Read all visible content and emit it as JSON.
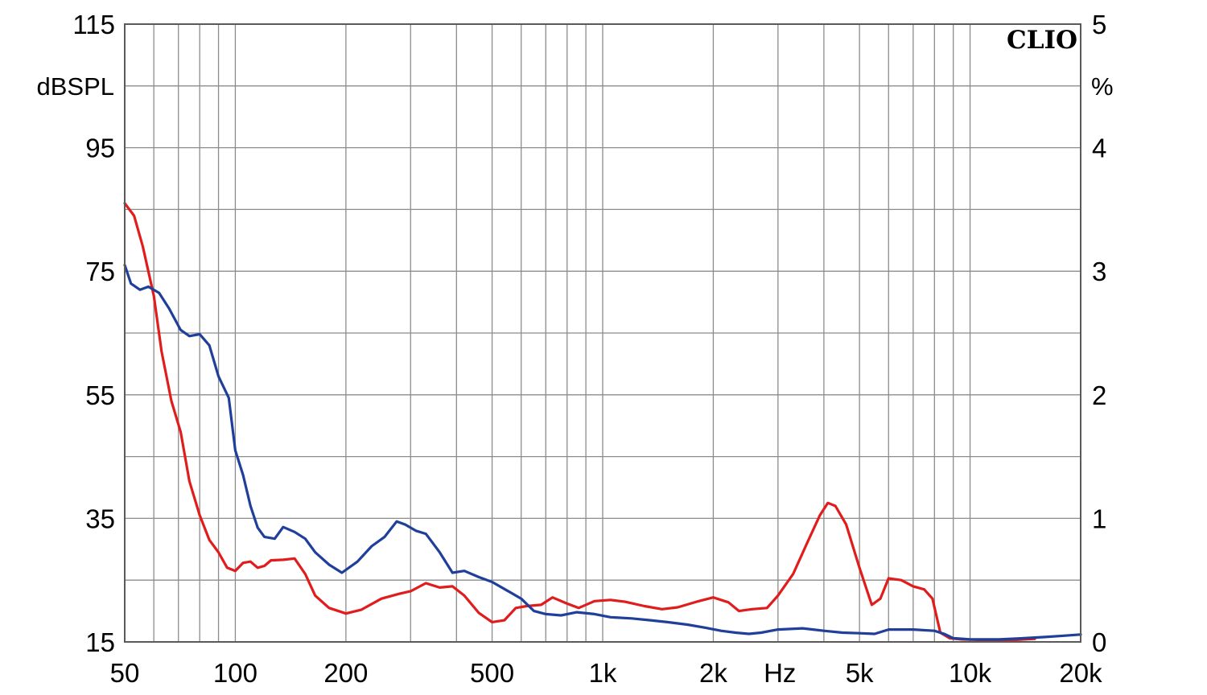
{
  "chart_data": {
    "type": "line",
    "brand_label": "CLIO",
    "x_scale": "log",
    "xlim": [
      50,
      20000
    ],
    "x_ticks": [
      {
        "value": 50,
        "label": "50"
      },
      {
        "value": 100,
        "label": "100"
      },
      {
        "value": 200,
        "label": "200"
      },
      {
        "value": 500,
        "label": "500"
      },
      {
        "value": 1000,
        "label": "1k"
      },
      {
        "value": 2000,
        "label": "2k"
      },
      {
        "value": 5000,
        "label": "5k"
      },
      {
        "value": 10000,
        "label": "10k"
      },
      {
        "value": 20000,
        "label": "20k"
      }
    ],
    "x_unit_label": "Hz",
    "y_left": {
      "unit_label": "dBSPL",
      "ylim": [
        15,
        115
      ],
      "ticks": [
        15,
        35,
        55,
        75,
        95,
        115
      ]
    },
    "y_right": {
      "unit_label": "%",
      "ylim": [
        0,
        5
      ],
      "ticks": [
        0,
        1,
        2,
        3,
        4,
        5
      ]
    },
    "grid": true,
    "colors": {
      "red": "#e01c1c",
      "blue": "#1f3f9a",
      "grid": "#8c8c8c",
      "frame": "#5a5a5a"
    },
    "series": [
      {
        "color": "red",
        "axis": "left",
        "points": [
          [
            50,
            86
          ],
          [
            53,
            84
          ],
          [
            56,
            79
          ],
          [
            60,
            71
          ],
          [
            63,
            62
          ],
          [
            67,
            54
          ],
          [
            71,
            49
          ],
          [
            75,
            41
          ],
          [
            80,
            35.5
          ],
          [
            85,
            31.5
          ],
          [
            90,
            29.5
          ],
          [
            95,
            27
          ],
          [
            100,
            26.5
          ],
          [
            105,
            27.8
          ],
          [
            110,
            28
          ],
          [
            115,
            27
          ],
          [
            120,
            27.3
          ],
          [
            125,
            28.2
          ],
          [
            135,
            28.3
          ],
          [
            145,
            28.5
          ],
          [
            155,
            26
          ],
          [
            165,
            22.5
          ],
          [
            180,
            20.5
          ],
          [
            200,
            19.6
          ],
          [
            220,
            20.2
          ],
          [
            250,
            22
          ],
          [
            280,
            22.8
          ],
          [
            300,
            23.2
          ],
          [
            330,
            24.5
          ],
          [
            360,
            23.8
          ],
          [
            390,
            24
          ],
          [
            420,
            22.5
          ],
          [
            460,
            19.7
          ],
          [
            500,
            18.2
          ],
          [
            540,
            18.5
          ],
          [
            580,
            20.5
          ],
          [
            620,
            20.8
          ],
          [
            680,
            21
          ],
          [
            730,
            22.2
          ],
          [
            800,
            21.2
          ],
          [
            860,
            20.5
          ],
          [
            950,
            21.6
          ],
          [
            1050,
            21.8
          ],
          [
            1150,
            21.5
          ],
          [
            1300,
            20.8
          ],
          [
            1450,
            20.3
          ],
          [
            1600,
            20.6
          ],
          [
            1800,
            21.5
          ],
          [
            2000,
            22.2
          ],
          [
            2200,
            21.4
          ],
          [
            2350,
            20
          ],
          [
            2550,
            20.3
          ],
          [
            2800,
            20.5
          ],
          [
            3000,
            22.5
          ],
          [
            3300,
            26
          ],
          [
            3600,
            31
          ],
          [
            3900,
            35.5
          ],
          [
            4100,
            37.5
          ],
          [
            4300,
            37
          ],
          [
            4600,
            34
          ],
          [
            5000,
            27
          ],
          [
            5400,
            21
          ],
          [
            5700,
            22
          ],
          [
            6000,
            25.3
          ],
          [
            6500,
            25
          ],
          [
            7000,
            24
          ],
          [
            7500,
            23.5
          ],
          [
            7900,
            22
          ],
          [
            8300,
            16.5
          ],
          [
            8800,
            15.6
          ],
          [
            9500,
            15.4
          ],
          [
            11000,
            15.3
          ],
          [
            13000,
            15.3
          ],
          [
            15000,
            15.5
          ]
        ]
      },
      {
        "color": "blue",
        "axis": "left",
        "points": [
          [
            50,
            76
          ],
          [
            52,
            73
          ],
          [
            55,
            72
          ],
          [
            58,
            72.5
          ],
          [
            62,
            71.5
          ],
          [
            66,
            69
          ],
          [
            71,
            65.5
          ],
          [
            75,
            64.5
          ],
          [
            80,
            64.8
          ],
          [
            85,
            63
          ],
          [
            90,
            58
          ],
          [
            96,
            54.5
          ],
          [
            100,
            46
          ],
          [
            105,
            42
          ],
          [
            110,
            37
          ],
          [
            115,
            33.5
          ],
          [
            120,
            32
          ],
          [
            128,
            31.7
          ],
          [
            135,
            33.6
          ],
          [
            145,
            32.8
          ],
          [
            155,
            31.7
          ],
          [
            165,
            29.5
          ],
          [
            180,
            27.5
          ],
          [
            195,
            26.2
          ],
          [
            215,
            28
          ],
          [
            235,
            30.5
          ],
          [
            255,
            32
          ],
          [
            275,
            34.5
          ],
          [
            290,
            34
          ],
          [
            310,
            33
          ],
          [
            330,
            32.5
          ],
          [
            360,
            29.5
          ],
          [
            390,
            26.2
          ],
          [
            420,
            26.5
          ],
          [
            460,
            25.5
          ],
          [
            500,
            24.7
          ],
          [
            550,
            23.3
          ],
          [
            600,
            22
          ],
          [
            650,
            20
          ],
          [
            700,
            19.5
          ],
          [
            770,
            19.3
          ],
          [
            850,
            19.8
          ],
          [
            950,
            19.5
          ],
          [
            1050,
            19
          ],
          [
            1200,
            18.8
          ],
          [
            1350,
            18.5
          ],
          [
            1500,
            18.2
          ],
          [
            1700,
            17.8
          ],
          [
            1900,
            17.3
          ],
          [
            2100,
            16.8
          ],
          [
            2300,
            16.5
          ],
          [
            2500,
            16.3
          ],
          [
            2700,
            16.5
          ],
          [
            3000,
            17
          ],
          [
            3500,
            17.2
          ],
          [
            4000,
            16.8
          ],
          [
            4500,
            16.5
          ],
          [
            5000,
            16.4
          ],
          [
            5500,
            16.3
          ],
          [
            6000,
            17
          ],
          [
            7000,
            17
          ],
          [
            8000,
            16.8
          ],
          [
            8500,
            16.3
          ],
          [
            9000,
            15.6
          ],
          [
            10000,
            15.4
          ],
          [
            12000,
            15.4
          ],
          [
            14000,
            15.6
          ],
          [
            16000,
            15.8
          ],
          [
            18000,
            16
          ],
          [
            20000,
            16.2
          ]
        ]
      }
    ]
  }
}
